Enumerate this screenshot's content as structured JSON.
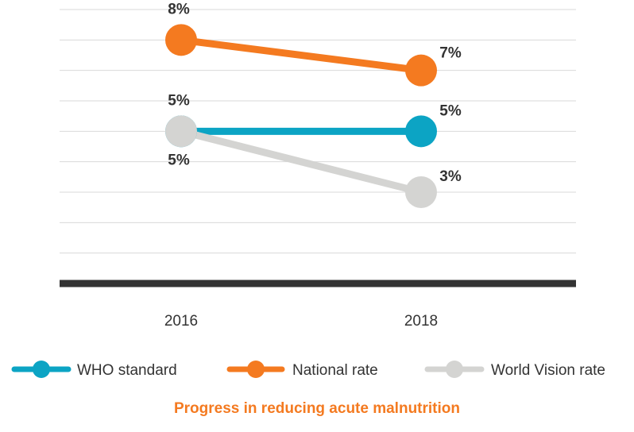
{
  "caption": "Progress in reducing acute malnutrition",
  "chart_data": {
    "type": "line",
    "title": "",
    "xlabel": "",
    "ylabel": "",
    "categories": [
      "2016",
      "2018"
    ],
    "ylim": [
      0,
      9
    ],
    "grid": true,
    "legend_position": "bottom",
    "series": [
      {
        "name": "WHO standard",
        "values": [
          5,
          5
        ],
        "labels": [
          "5%",
          "5%"
        ],
        "color": "#0ca4c4"
      },
      {
        "name": "National rate",
        "values": [
          8,
          7
        ],
        "labels": [
          "8%",
          "7%"
        ],
        "color": "#f47a20"
      },
      {
        "name": "World Vision rate",
        "values": [
          5,
          3
        ],
        "labels": [
          "5%",
          "3%"
        ],
        "color": "#d4d4d2"
      }
    ]
  }
}
